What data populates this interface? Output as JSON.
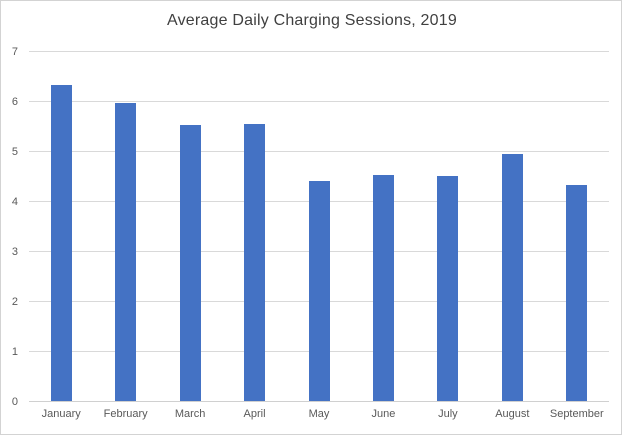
{
  "chart_data": {
    "type": "bar",
    "title": "Average Daily Charging Sessions, 2019",
    "categories": [
      "January",
      "February",
      "March",
      "April",
      "May",
      "June",
      "July",
      "August",
      "September"
    ],
    "values": [
      6.33,
      5.96,
      5.52,
      5.55,
      4.4,
      4.52,
      4.5,
      4.95,
      4.33
    ],
    "xlabel": "",
    "ylabel": "",
    "ylim": [
      0,
      7
    ],
    "ytick_step": 1,
    "ytick_labels": [
      "0",
      "1",
      "2",
      "3",
      "4",
      "5",
      "6",
      "7"
    ],
    "grid": true,
    "legend": "none",
    "colors": {
      "bar": "#4472C4",
      "gridline": "#D9D9D9",
      "baseline": "#D0D0D0",
      "axis_text": "#595959",
      "title_text": "#404040",
      "background": "#FFFFFF",
      "border": "#D3D3D3"
    }
  }
}
